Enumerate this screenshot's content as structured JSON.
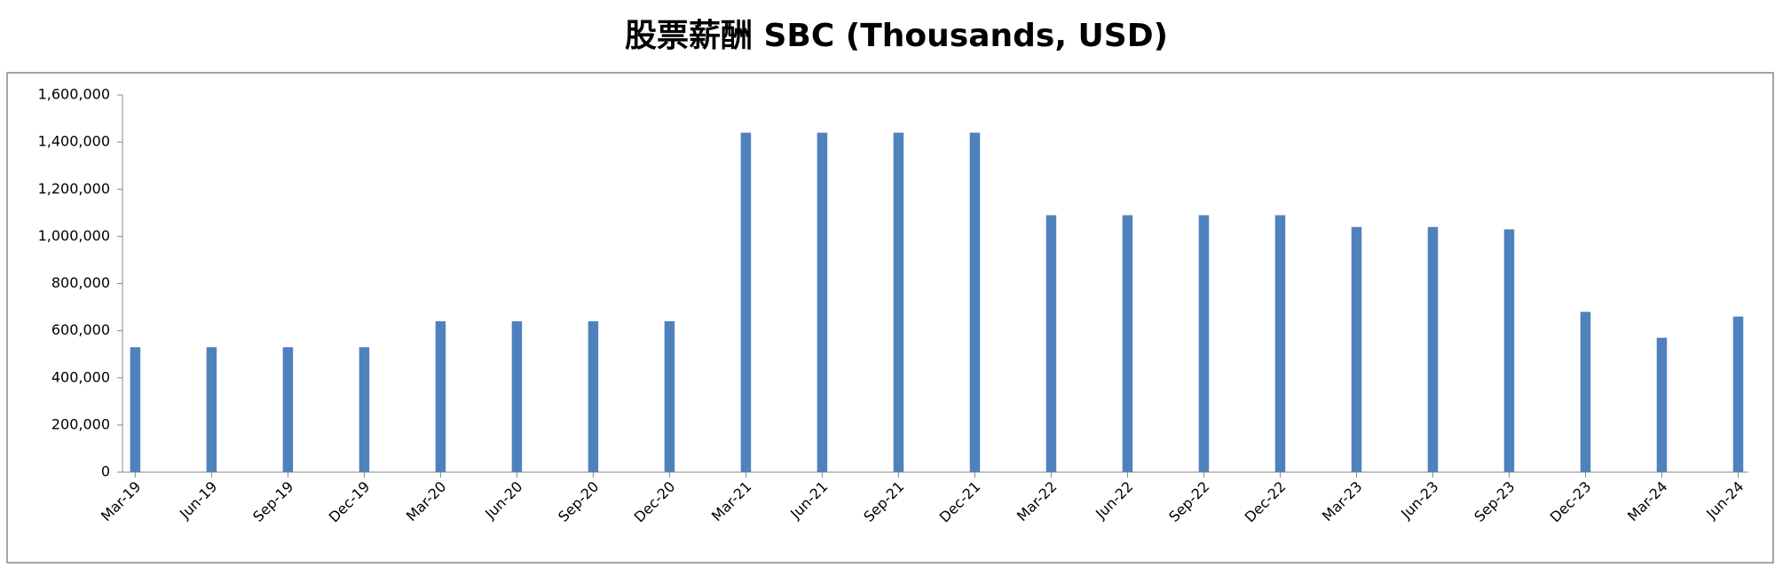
{
  "chart_data": {
    "type": "bar",
    "title": "股票薪酬 SBC (Thousands, USD)",
    "categories": [
      "Mar-19",
      "Jun-19",
      "Sep-19",
      "Dec-19",
      "Mar-20",
      "Jun-20",
      "Sep-20",
      "Dec-20",
      "Mar-21",
      "Jun-21",
      "Sep-21",
      "Dec-21",
      "Mar-22",
      "Jun-22",
      "Sep-22",
      "Dec-22",
      "Mar-23",
      "Jun-23",
      "Sep-23",
      "Dec-23",
      "Mar-24",
      "Jun-24"
    ],
    "values": [
      530000,
      530000,
      530000,
      530000,
      640000,
      640000,
      640000,
      640000,
      1440000,
      1440000,
      1440000,
      1440000,
      1090000,
      1090000,
      1090000,
      1090000,
      1040000,
      1040000,
      1030000,
      680000,
      570000,
      660000
    ],
    "color": "#4f81bd",
    "ylim": [
      0,
      1600000
    ],
    "yticks": [
      0,
      {
        "value": 200000,
        "label": "200,000"
      },
      {
        "value": 400000,
        "label": "400,000"
      },
      {
        "value": 600000,
        "label": "600,000"
      },
      {
        "value": 800000,
        "label": "800,000"
      },
      {
        "value": 1000000,
        "label": "1,000,000"
      },
      {
        "value": 1200000,
        "label": "1,200,000"
      },
      {
        "value": 1400000,
        "label": "1,400,000"
      },
      {
        "value": 1600000,
        "label": "1,600,000"
      }
    ],
    "grid": false
  }
}
